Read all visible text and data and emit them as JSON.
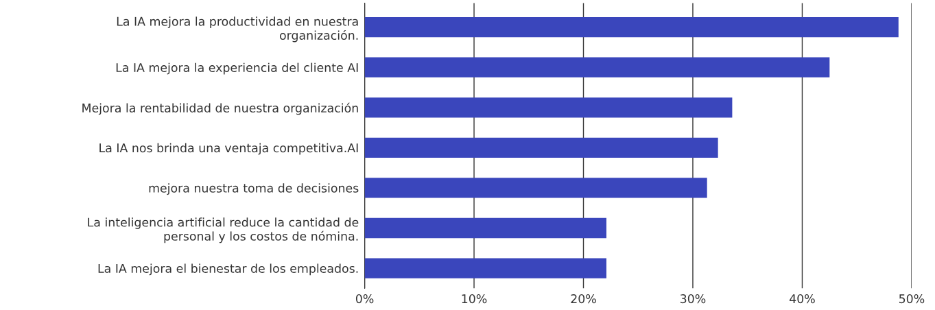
{
  "chart_data": {
    "type": "bar",
    "orientation": "horizontal",
    "categories": [
      "La IA mejora la productividad en nuestra\norganización.",
      "La IA mejora la experiencia del cliente AI",
      "Mejora la rentabilidad de nuestra organización",
      "La IA nos brinda una ventaja competitiva.AI",
      "mejora nuestra toma de decisiones",
      "La inteligencia artificial reduce la cantidad de\npersonal y los costos de nómina.",
      "La IA mejora el bienestar de los empleados."
    ],
    "values": [
      48.8,
      42.5,
      33.6,
      32.3,
      31.3,
      22.1,
      22.1
    ],
    "color": "#3a46bc",
    "xlim": [
      0,
      50
    ],
    "xticks": [
      {
        "value": 0,
        "label": "0%"
      },
      {
        "value": 10,
        "label": "10%"
      },
      {
        "value": 20,
        "label": "20%"
      },
      {
        "value": 30,
        "label": "30%"
      },
      {
        "value": 40,
        "label": "40%"
      },
      {
        "value": 50,
        "label": "50%"
      }
    ],
    "grid": "x"
  }
}
